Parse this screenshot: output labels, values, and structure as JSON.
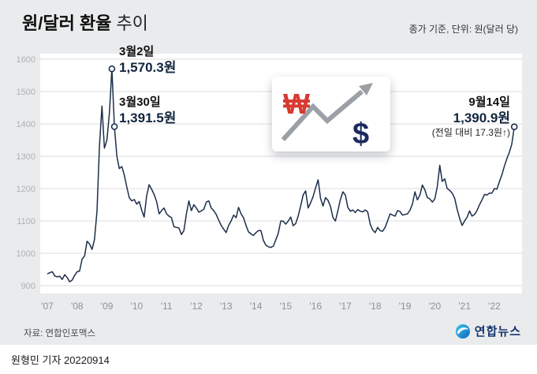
{
  "header": {
    "title_bold": "원/달러 환율",
    "title_light": "추이",
    "caption": "종가 기준, 단위: 원(달러 당)"
  },
  "chart_data": {
    "type": "line",
    "title": "원/달러 환율 추이",
    "unit": "원(달러 당)",
    "ylim": [
      900,
      1600
    ],
    "yticks": [
      900,
      1000,
      1100,
      1200,
      1300,
      1400,
      1500,
      1600
    ],
    "x_start_year": 2007,
    "points_per_year": 12,
    "xtick_labels": [
      "'07",
      "'08",
      "'09",
      "'10",
      "'11",
      "'12",
      "'13",
      "'14",
      "'15",
      "'16",
      "'17",
      "'18",
      "'19",
      "'20",
      "'21",
      "'22"
    ],
    "line_color": "#1c2e4a",
    "grid_color": "#dcdcdc",
    "values": [
      936,
      940,
      943,
      930,
      927,
      929,
      919,
      934,
      925,
      912,
      917,
      932,
      943,
      945,
      982,
      992,
      1037,
      1029,
      1012,
      1042,
      1130,
      1330,
      1455,
      1325,
      1350,
      1435,
      1570.3,
      1391.5,
      1300,
      1262,
      1268,
      1242,
      1205,
      1172,
      1162,
      1166,
      1152,
      1160,
      1133,
      1112,
      1178,
      1212,
      1198,
      1182,
      1160,
      1122,
      1132,
      1140,
      1122,
      1115,
      1110,
      1082,
      1080,
      1078,
      1058,
      1070,
      1122,
      1162,
      1132,
      1150,
      1140,
      1127,
      1131,
      1136,
      1158,
      1162,
      1140,
      1132,
      1120,
      1102,
      1086,
      1075,
      1064,
      1086,
      1100,
      1118,
      1110,
      1142,
      1122,
      1110,
      1086,
      1066,
      1060,
      1055,
      1064,
      1070,
      1070,
      1040,
      1025,
      1020,
      1018,
      1022,
      1042,
      1062,
      1100,
      1099,
      1090,
      1100,
      1112,
      1085,
      1092,
      1115,
      1146,
      1180,
      1193,
      1140,
      1156,
      1175,
      1202,
      1227,
      1170,
      1146,
      1172,
      1164,
      1145,
      1110,
      1100,
      1132,
      1166,
      1190,
      1180,
      1142,
      1130,
      1134,
      1126,
      1135,
      1130,
      1128,
      1134,
      1128,
      1090,
      1072,
      1064,
      1080,
      1070,
      1068,
      1080,
      1100,
      1122,
      1118,
      1115,
      1132,
      1129,
      1118,
      1120,
      1122,
      1133,
      1152,
      1190,
      1165,
      1180,
      1211,
      1196,
      1172,
      1168,
      1158,
      1168,
      1205,
      1272,
      1222,
      1230,
      1200,
      1195,
      1186,
      1170,
      1135,
      1108,
      1086,
      1100,
      1112,
      1131,
      1115,
      1120,
      1132,
      1150,
      1165,
      1182,
      1180,
      1186,
      1186,
      1200,
      1198,
      1221,
      1242,
      1269,
      1292,
      1312,
      1337,
      1390.9
    ],
    "annotations": [
      {
        "index": 26,
        "date": "3월2일",
        "value_label": "1,570.3원"
      },
      {
        "index": 27,
        "date": "3월30일",
        "value_label": "1,391.5원"
      },
      {
        "index": 188,
        "date": "9월14일",
        "value_label": "1,390.9원",
        "sub": "(전일 대비 17.3원↑)"
      }
    ]
  },
  "icon_box": {
    "won_symbol": "₩",
    "dollar_symbol": "$",
    "won_color": "#d93a31",
    "dollar_color": "#1b2a5e",
    "arrow_color": "#9aa0a6"
  },
  "footer": {
    "source": "자료: 연합인포맥스",
    "logo_text": "연합뉴스"
  },
  "byline": "원형민 기자 20220914"
}
